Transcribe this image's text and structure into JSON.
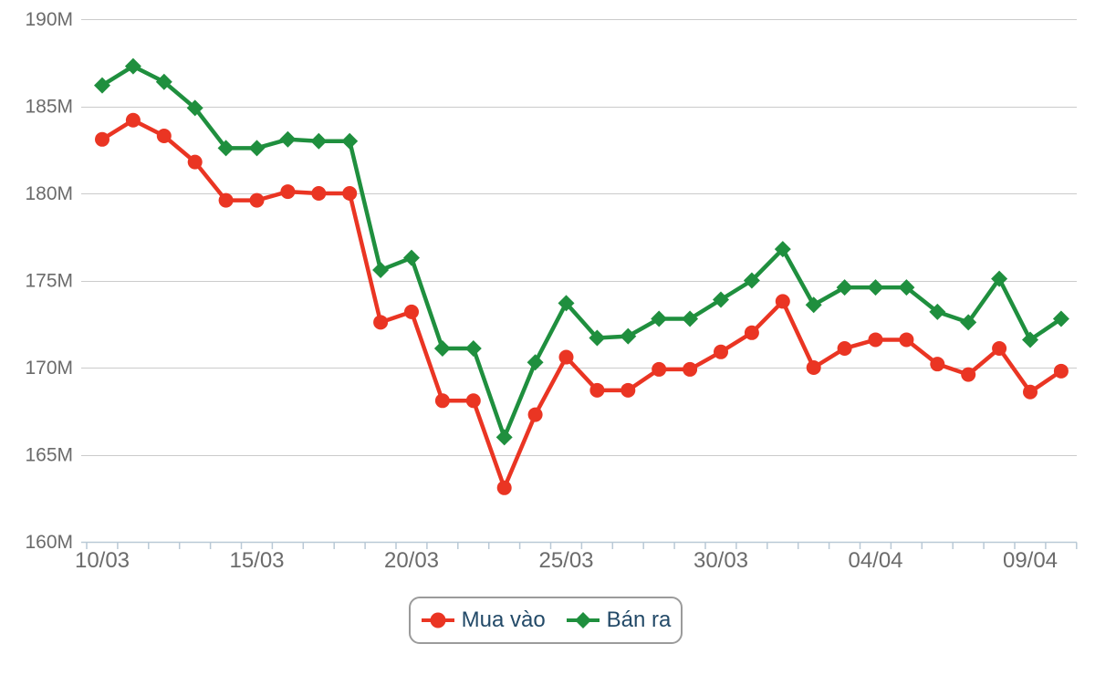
{
  "chart_data": {
    "type": "line",
    "title": "",
    "xlabel": "",
    "ylabel": "",
    "y_unit": "M",
    "ylim": [
      160,
      190
    ],
    "y_ticks": [
      160,
      165,
      170,
      175,
      180,
      185,
      190
    ],
    "y_tick_labels": [
      "160M",
      "165M",
      "170M",
      "175M",
      "180M",
      "185M",
      "190M"
    ],
    "grid": "horizontal",
    "legend_position": "bottom",
    "categories": [
      "10/03",
      "11/03",
      "12/03",
      "13/03",
      "14/03",
      "15/03",
      "16/03",
      "17/03",
      "18/03",
      "19/03",
      "20/03",
      "21/03",
      "22/03",
      "23/03",
      "24/03",
      "25/03",
      "26/03",
      "27/03",
      "28/03",
      "29/03",
      "30/03",
      "31/03",
      "01/04",
      "02/04",
      "03/04",
      "04/04",
      "05/04",
      "06/04",
      "07/04",
      "08/04",
      "09/04",
      "10/04"
    ],
    "x_tick_labels": [
      "10/03",
      "15/03",
      "20/03",
      "25/03",
      "30/03",
      "04/04",
      "09/04"
    ],
    "x_tick_indexes": [
      0,
      5,
      10,
      15,
      20,
      25,
      30
    ],
    "series": [
      {
        "name": "Mua vào",
        "marker": "circle",
        "color": "#ea3523",
        "values": [
          183.1,
          184.2,
          183.3,
          181.8,
          179.6,
          179.6,
          180.1,
          180.0,
          180.0,
          172.6,
          173.2,
          168.1,
          168.1,
          163.1,
          167.3,
          170.6,
          168.7,
          168.7,
          169.9,
          169.9,
          170.9,
          172.0,
          173.8,
          170.0,
          171.1,
          171.6,
          171.6,
          170.2,
          169.6,
          171.1,
          168.6,
          169.8
        ]
      },
      {
        "name": "Bán ra",
        "marker": "diamond",
        "color": "#1f8f3e",
        "values": [
          186.2,
          187.3,
          186.4,
          184.9,
          182.6,
          182.6,
          183.1,
          183.0,
          183.0,
          175.6,
          176.3,
          171.1,
          171.1,
          166.0,
          170.3,
          173.7,
          171.7,
          171.8,
          172.8,
          172.8,
          173.9,
          175.0,
          176.8,
          173.6,
          174.6,
          174.6,
          174.6,
          173.2,
          172.6,
          175.1,
          171.6,
          172.8
        ]
      }
    ],
    "colors": {
      "grid_line": "#cbcbcb",
      "axis_line": "#b9c9d6",
      "axis_label": "#6b6b6b",
      "legend_text": "#234a68",
      "legend_border": "#9b9b9b",
      "background": "#ffffff"
    }
  }
}
